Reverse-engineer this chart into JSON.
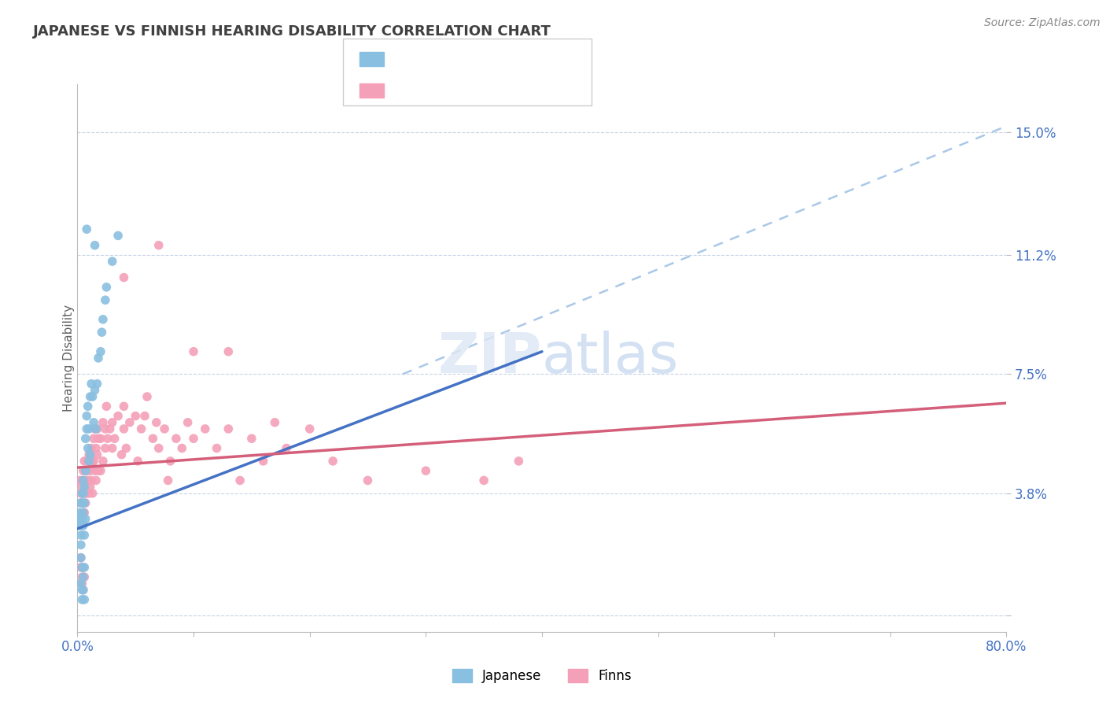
{
  "title": "JAPANESE VS FINNISH HEARING DISABILITY CORRELATION CHART",
  "source": "Source: ZipAtlas.com",
  "ylabel": "Hearing Disability",
  "xlim": [
    0.0,
    0.8
  ],
  "ylim": [
    -0.005,
    0.165
  ],
  "yticks": [
    0.0,
    0.038,
    0.075,
    0.112,
    0.15
  ],
  "xticks": [
    0.0,
    0.1,
    0.2,
    0.3,
    0.4,
    0.5,
    0.6,
    0.7,
    0.8
  ],
  "japanese_color": "#89bfe0",
  "finns_color": "#f4a0b8",
  "japanese_line_color": "#4472c4",
  "finns_line_color": "#d45f7a",
  "dashed_line_color": "#aac8e8",
  "background_color": "#ffffff",
  "grid_color": "#c8d4e8",
  "title_color": "#404040",
  "axis_label_color": "#4472c4",
  "finns_label_color": "#d45f7a",
  "japanese_points": [
    [
      0.002,
      0.028
    ],
    [
      0.002,
      0.032
    ],
    [
      0.003,
      0.025
    ],
    [
      0.003,
      0.03
    ],
    [
      0.003,
      0.035
    ],
    [
      0.003,
      0.022
    ],
    [
      0.004,
      0.03
    ],
    [
      0.004,
      0.035
    ],
    [
      0.004,
      0.038
    ],
    [
      0.004,
      0.028
    ],
    [
      0.005,
      0.032
    ],
    [
      0.005,
      0.038
    ],
    [
      0.005,
      0.042
    ],
    [
      0.005,
      0.028
    ],
    [
      0.006,
      0.035
    ],
    [
      0.006,
      0.025
    ],
    [
      0.006,
      0.04
    ],
    [
      0.007,
      0.045
    ],
    [
      0.007,
      0.03
    ],
    [
      0.007,
      0.055
    ],
    [
      0.008,
      0.058
    ],
    [
      0.008,
      0.062
    ],
    [
      0.009,
      0.065
    ],
    [
      0.009,
      0.052
    ],
    [
      0.01,
      0.048
    ],
    [
      0.01,
      0.058
    ],
    [
      0.011,
      0.068
    ],
    [
      0.011,
      0.05
    ],
    [
      0.012,
      0.072
    ],
    [
      0.013,
      0.068
    ],
    [
      0.014,
      0.06
    ],
    [
      0.015,
      0.07
    ],
    [
      0.016,
      0.058
    ],
    [
      0.017,
      0.072
    ],
    [
      0.018,
      0.08
    ],
    [
      0.02,
      0.082
    ],
    [
      0.021,
      0.088
    ],
    [
      0.022,
      0.092
    ],
    [
      0.024,
      0.098
    ],
    [
      0.025,
      0.102
    ],
    [
      0.03,
      0.11
    ],
    [
      0.035,
      0.118
    ],
    [
      0.008,
      0.12
    ],
    [
      0.015,
      0.115
    ],
    [
      0.003,
      0.01
    ],
    [
      0.004,
      0.008
    ],
    [
      0.004,
      0.005
    ],
    [
      0.005,
      0.012
    ],
    [
      0.005,
      0.008
    ],
    [
      0.006,
      0.015
    ],
    [
      0.006,
      0.005
    ],
    [
      0.004,
      0.015
    ],
    [
      0.003,
      0.018
    ]
  ],
  "finns_points": [
    [
      0.002,
      0.042
    ],
    [
      0.003,
      0.038
    ],
    [
      0.003,
      0.035
    ],
    [
      0.004,
      0.04
    ],
    [
      0.004,
      0.028
    ],
    [
      0.004,
      0.042
    ],
    [
      0.005,
      0.032
    ],
    [
      0.005,
      0.038
    ],
    [
      0.005,
      0.045
    ],
    [
      0.006,
      0.038
    ],
    [
      0.006,
      0.032
    ],
    [
      0.006,
      0.048
    ],
    [
      0.007,
      0.042
    ],
    [
      0.007,
      0.035
    ],
    [
      0.008,
      0.045
    ],
    [
      0.008,
      0.038
    ],
    [
      0.009,
      0.048
    ],
    [
      0.009,
      0.042
    ],
    [
      0.01,
      0.05
    ],
    [
      0.01,
      0.038
    ],
    [
      0.011,
      0.045
    ],
    [
      0.011,
      0.04
    ],
    [
      0.012,
      0.052
    ],
    [
      0.012,
      0.042
    ],
    [
      0.013,
      0.048
    ],
    [
      0.013,
      0.038
    ],
    [
      0.014,
      0.055
    ],
    [
      0.014,
      0.048
    ],
    [
      0.015,
      0.058
    ],
    [
      0.015,
      0.045
    ],
    [
      0.016,
      0.052
    ],
    [
      0.016,
      0.042
    ],
    [
      0.017,
      0.05
    ],
    [
      0.017,
      0.058
    ],
    [
      0.018,
      0.055
    ],
    [
      0.018,
      0.045
    ],
    [
      0.02,
      0.055
    ],
    [
      0.02,
      0.045
    ],
    [
      0.022,
      0.06
    ],
    [
      0.022,
      0.048
    ],
    [
      0.024,
      0.052
    ],
    [
      0.024,
      0.058
    ],
    [
      0.025,
      0.065
    ],
    [
      0.026,
      0.055
    ],
    [
      0.028,
      0.058
    ],
    [
      0.03,
      0.052
    ],
    [
      0.03,
      0.06
    ],
    [
      0.032,
      0.055
    ],
    [
      0.035,
      0.062
    ],
    [
      0.038,
      0.05
    ],
    [
      0.04,
      0.058
    ],
    [
      0.04,
      0.065
    ],
    [
      0.042,
      0.052
    ],
    [
      0.045,
      0.06
    ],
    [
      0.05,
      0.062
    ],
    [
      0.052,
      0.048
    ],
    [
      0.055,
      0.058
    ],
    [
      0.058,
      0.062
    ],
    [
      0.06,
      0.068
    ],
    [
      0.065,
      0.055
    ],
    [
      0.068,
      0.06
    ],
    [
      0.07,
      0.052
    ],
    [
      0.075,
      0.058
    ],
    [
      0.078,
      0.042
    ],
    [
      0.08,
      0.048
    ],
    [
      0.085,
      0.055
    ],
    [
      0.09,
      0.052
    ],
    [
      0.095,
      0.06
    ],
    [
      0.1,
      0.055
    ],
    [
      0.11,
      0.058
    ],
    [
      0.12,
      0.052
    ],
    [
      0.13,
      0.058
    ],
    [
      0.14,
      0.042
    ],
    [
      0.15,
      0.055
    ],
    [
      0.16,
      0.048
    ],
    [
      0.17,
      0.06
    ],
    [
      0.18,
      0.052
    ],
    [
      0.2,
      0.058
    ],
    [
      0.22,
      0.048
    ],
    [
      0.25,
      0.042
    ],
    [
      0.3,
      0.045
    ],
    [
      0.35,
      0.042
    ],
    [
      0.38,
      0.048
    ],
    [
      0.04,
      0.105
    ],
    [
      0.07,
      0.115
    ],
    [
      0.1,
      0.082
    ],
    [
      0.13,
      0.082
    ],
    [
      0.003,
      0.018
    ],
    [
      0.004,
      0.012
    ],
    [
      0.004,
      0.01
    ],
    [
      0.005,
      0.015
    ],
    [
      0.005,
      0.008
    ],
    [
      0.006,
      0.012
    ],
    [
      0.003,
      0.015
    ]
  ],
  "jp_trendline": [
    [
      0.0,
      0.027
    ],
    [
      0.4,
      0.082
    ]
  ],
  "fi_trendline": [
    [
      0.0,
      0.046
    ],
    [
      0.8,
      0.066
    ]
  ],
  "dashed_trendline": [
    [
      0.28,
      0.075
    ],
    [
      0.8,
      0.152
    ]
  ]
}
